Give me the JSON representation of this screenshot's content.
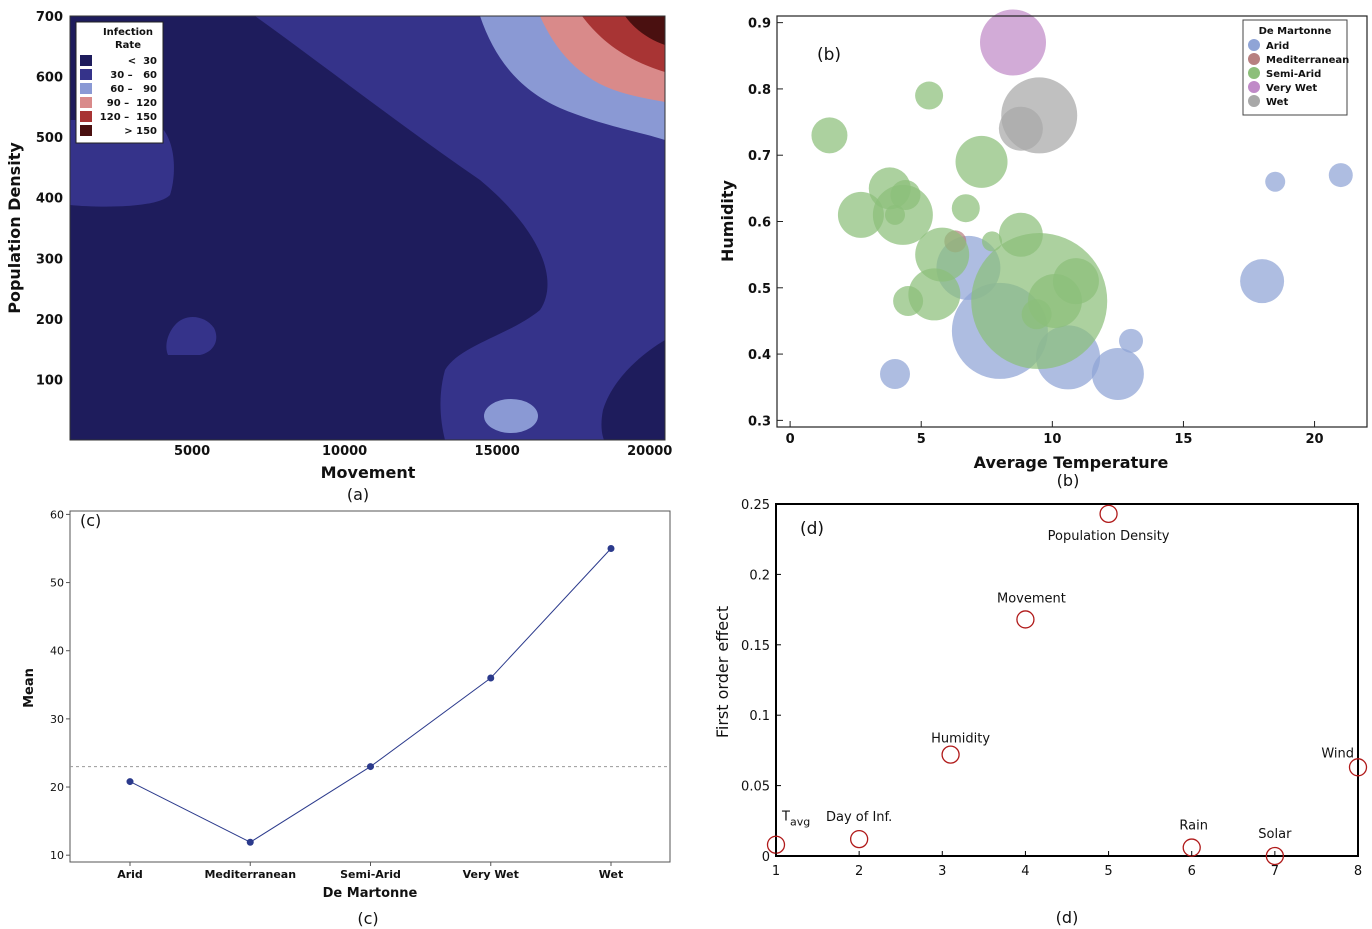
{
  "chart_data": [
    {
      "type": "heatmap",
      "panel_label": "(a)",
      "xlabel": "Movement",
      "ylabel": "Population Density",
      "xlim": [
        1000,
        20500
      ],
      "ylim": [
        0,
        700
      ],
      "xticks": [
        "5000",
        "10000",
        "15000",
        "20000"
      ],
      "yticks": [
        "100",
        "200",
        "300",
        "400",
        "500",
        "600",
        "700"
      ],
      "legend": {
        "title": [
          "Infection",
          "Rate"
        ],
        "placement": "top-left",
        "entries": [
          {
            "label": "<  30",
            "color": "#1e1c5c"
          },
          {
            "label": "30 –   60",
            "color": "#35338a"
          },
          {
            "label": "60 –   90",
            "color": "#8a99d4"
          },
          {
            "label": "90 –  120",
            "color": "#d98a8a"
          },
          {
            "label": "120 –  150",
            "color": "#a83434"
          },
          {
            "label": "> 150",
            "color": "#4a1010"
          }
        ]
      }
    },
    {
      "type": "scatter",
      "panel_label": "(b)",
      "caption": "(b)",
      "xlabel": "Average Temperature",
      "ylabel": "Humidity",
      "xlim": [
        -0.5,
        22
      ],
      "ylim": [
        0.29,
        0.91
      ],
      "xticks": [
        0,
        5,
        10,
        15,
        20
      ],
      "yticks": [
        0.3,
        0.4,
        0.5,
        0.6,
        0.7,
        0.8,
        0.9
      ],
      "legend": {
        "title": "De Martonne",
        "placement": "top-right",
        "entries": [
          {
            "label": "Arid",
            "color": "#8fa4d6"
          },
          {
            "label": "Mediterranean",
            "color": "#b78080"
          },
          {
            "label": "Semi-Arid",
            "color": "#8cbf7a"
          },
          {
            "label": "Very Wet",
            "color": "#c08ac8"
          },
          {
            "label": "Wet",
            "color": "#a8a8a8"
          }
        ]
      },
      "series": [
        {
          "name": "Arid",
          "points": [
            {
              "x": 8.0,
              "y": 0.435,
              "r": 48
            },
            {
              "x": 6.8,
              "y": 0.53,
              "r": 32
            },
            {
              "x": 10.6,
              "y": 0.395,
              "r": 32
            },
            {
              "x": 12.5,
              "y": 0.37,
              "r": 26
            },
            {
              "x": 18.0,
              "y": 0.51,
              "r": 22
            },
            {
              "x": 4.0,
              "y": 0.37,
              "r": 15
            },
            {
              "x": 13.0,
              "y": 0.42,
              "r": 12
            },
            {
              "x": 18.5,
              "y": 0.66,
              "r": 10
            },
            {
              "x": 21.0,
              "y": 0.67,
              "r": 12
            }
          ]
        },
        {
          "name": "Mediterranean",
          "points": [
            {
              "x": 6.3,
              "y": 0.57,
              "r": 11
            }
          ]
        },
        {
          "name": "Semi-Arid",
          "points": [
            {
              "x": 9.5,
              "y": 0.48,
              "r": 68
            },
            {
              "x": 4.3,
              "y": 0.61,
              "r": 30
            },
            {
              "x": 5.8,
              "y": 0.55,
              "r": 27
            },
            {
              "x": 5.5,
              "y": 0.49,
              "r": 26
            },
            {
              "x": 2.7,
              "y": 0.61,
              "r": 23
            },
            {
              "x": 7.3,
              "y": 0.69,
              "r": 26
            },
            {
              "x": 3.8,
              "y": 0.65,
              "r": 21
            },
            {
              "x": 8.8,
              "y": 0.58,
              "r": 22
            },
            {
              "x": 10.1,
              "y": 0.48,
              "r": 27
            },
            {
              "x": 10.9,
              "y": 0.51,
              "r": 23
            },
            {
              "x": 1.5,
              "y": 0.73,
              "r": 18
            },
            {
              "x": 5.3,
              "y": 0.79,
              "r": 14
            },
            {
              "x": 6.7,
              "y": 0.62,
              "r": 14
            },
            {
              "x": 4.5,
              "y": 0.48,
              "r": 15
            },
            {
              "x": 4.4,
              "y": 0.64,
              "r": 15
            },
            {
              "x": 7.7,
              "y": 0.57,
              "r": 10
            },
            {
              "x": 4.0,
              "y": 0.61,
              "r": 10
            },
            {
              "x": 9.4,
              "y": 0.46,
              "r": 15
            }
          ]
        },
        {
          "name": "Very Wet",
          "points": [
            {
              "x": 8.5,
              "y": 0.87,
              "r": 33
            }
          ]
        },
        {
          "name": "Wet",
          "points": [
            {
              "x": 9.5,
              "y": 0.76,
              "r": 38
            },
            {
              "x": 8.8,
              "y": 0.74,
              "r": 22
            }
          ]
        }
      ]
    },
    {
      "type": "line",
      "panel_label": "(c)",
      "caption": "(c)",
      "xlabel": "De Martonne",
      "ylabel": "Mean",
      "categories": [
        "Arid",
        "Mediterranean",
        "Semi-Arid",
        "Very Wet",
        "Wet"
      ],
      "values": [
        20.8,
        11.9,
        23.0,
        36.0,
        55.0
      ],
      "reference_line": 23.0,
      "ylim": [
        9,
        60.5
      ],
      "yticks": [
        10,
        20,
        30,
        40,
        50,
        60
      ]
    },
    {
      "type": "scatter",
      "panel_label": "(d)",
      "caption": "(d)",
      "ylabel": "First order effect",
      "xlim": [
        1,
        8
      ],
      "ylim": [
        0,
        0.25
      ],
      "xticks": [
        1,
        2,
        3,
        4,
        5,
        6,
        7,
        8
      ],
      "yticks": [
        "0",
        "0.05",
        "0.1",
        "0.15",
        "0.2",
        "0.25"
      ],
      "points": [
        {
          "x": 1,
          "y": 0.008,
          "label": "T",
          "label_sub": "avg"
        },
        {
          "x": 2,
          "y": 0.012,
          "label": "Day of Inf."
        },
        {
          "x": 3.1,
          "y": 0.072,
          "label": "Humidity"
        },
        {
          "x": 4,
          "y": 0.168,
          "label": "Movement"
        },
        {
          "x": 5,
          "y": 0.243,
          "label": "Population Density"
        },
        {
          "x": 6,
          "y": 0.006,
          "label": "Rain"
        },
        {
          "x": 7,
          "y": 0.0,
          "label": "Solar"
        },
        {
          "x": 8,
          "y": 0.063,
          "label": "Wind"
        }
      ]
    }
  ]
}
